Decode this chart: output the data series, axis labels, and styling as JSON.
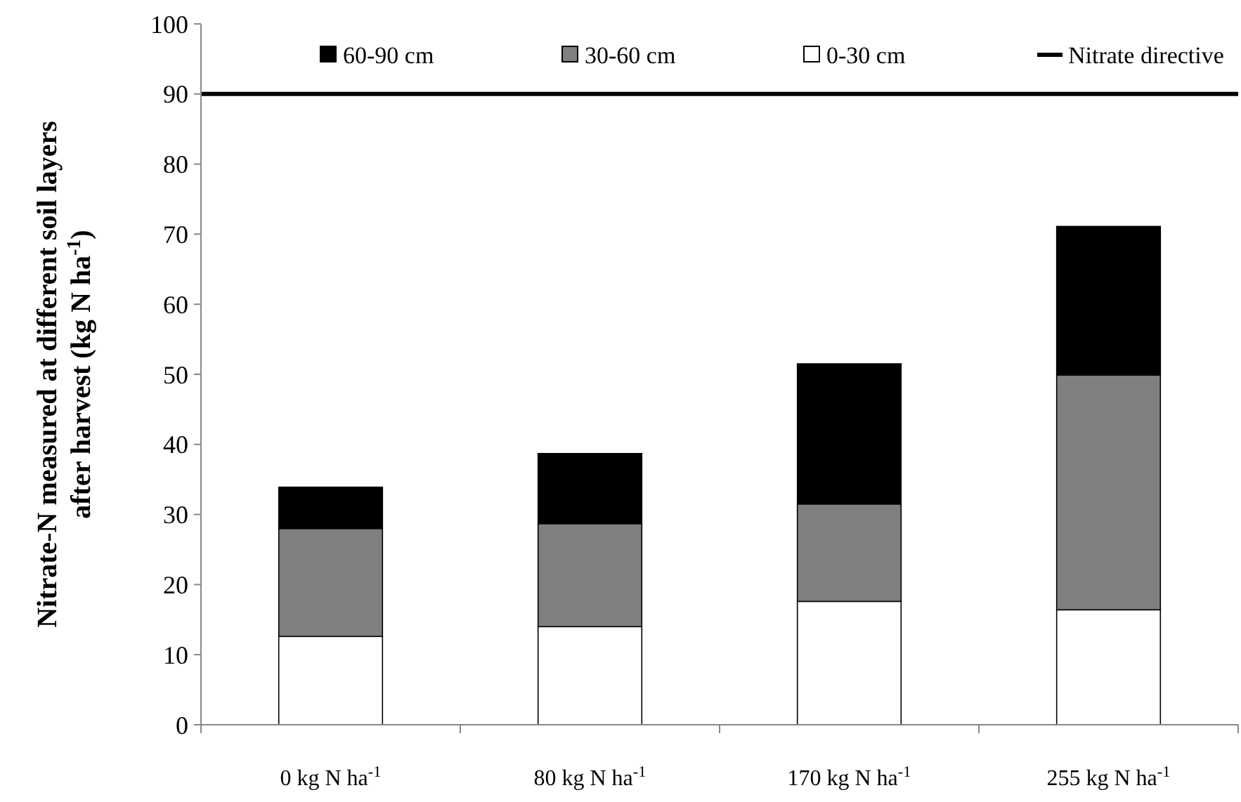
{
  "chart_data": {
    "type": "bar",
    "stacked": true,
    "ylabel": "Nitrate-N measured at different soil layers after harvest  (kg  N ha$^{-1}$)",
    "categories": [
      "0 kg N ha$^{-1}$",
      "80 kg N ha$^{-1}$",
      "170 kg N ha$^{-1}$",
      "255 kg N ha$^{-1}$"
    ],
    "series": [
      {
        "name": "0-30 cm",
        "color": "#ffffff",
        "values": [
          12.6,
          14.0,
          17.6,
          16.4
        ]
      },
      {
        "name": "30-60 cm",
        "color": "#808080",
        "values": [
          15.4,
          14.7,
          13.9,
          33.5
        ]
      },
      {
        "name": "60-90 cm",
        "color": "#000000",
        "values": [
          5.9,
          10.0,
          20.0,
          21.2
        ]
      }
    ],
    "ylim": [
      0,
      100
    ],
    "yticks": [
      0,
      10,
      20,
      30,
      40,
      50,
      60,
      70,
      80,
      90,
      100
    ],
    "ref_lines": [
      {
        "axis": "y",
        "value": 90,
        "label": "Nitrate directive",
        "color": "#000000",
        "line_style": "solid"
      }
    ],
    "legend": "top",
    "grid": false
  }
}
